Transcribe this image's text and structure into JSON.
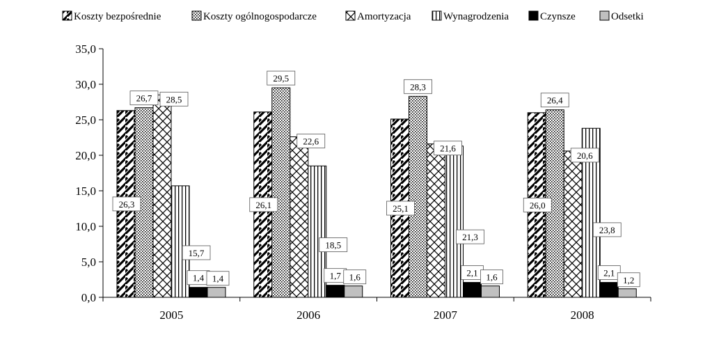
{
  "chart_data": {
    "type": "bar",
    "title": "",
    "xlabel": "",
    "ylabel": "",
    "ylim": [
      0,
      35
    ],
    "yticks": [
      "0,0",
      "5,0",
      "10,0",
      "15,0",
      "20,0",
      "25,0",
      "30,0",
      "35,0"
    ],
    "categories": [
      "2005",
      "2006",
      "2007",
      "2008"
    ],
    "legend_position": "top",
    "grid": false,
    "series": [
      {
        "name": "Koszty bezpośrednie",
        "values": [
          26.3,
          26.1,
          25.1,
          26.0
        ],
        "labels": [
          "26,3",
          "26,1",
          "25,1",
          "26,0"
        ],
        "pattern": "diagonal-hatch"
      },
      {
        "name": "Koszty ogólnogospodarcze",
        "values": [
          26.7,
          29.5,
          28.3,
          26.4
        ],
        "labels": [
          "26,7",
          "29,5",
          "28,3",
          "26,4"
        ],
        "pattern": "dots"
      },
      {
        "name": "Amortyzacja",
        "values": [
          28.5,
          22.6,
          21.6,
          20.6
        ],
        "labels": [
          "28,5",
          "22,6",
          "21,6",
          "20,6"
        ],
        "pattern": "crosshatch"
      },
      {
        "name": "Wynagrodzenia",
        "values": [
          15.7,
          18.5,
          21.3,
          23.8
        ],
        "labels": [
          "15,7",
          "18,5",
          "21,3",
          "23,8"
        ],
        "pattern": "vertical-lines"
      },
      {
        "name": "Czynsze",
        "values": [
          1.4,
          1.7,
          2.1,
          2.1
        ],
        "labels": [
          "1,4",
          "1,7",
          "2,1",
          "2,1"
        ],
        "pattern": "solid-black"
      },
      {
        "name": "Odsetki",
        "values": [
          1.4,
          1.6,
          1.6,
          1.2
        ],
        "labels": [
          "1,4",
          "1,6",
          "1,6",
          "1,2"
        ],
        "pattern": "solid-gray"
      }
    ]
  },
  "colors": {
    "black": "#000000",
    "gray": "#c0c0c0",
    "background": "#ffffff"
  }
}
